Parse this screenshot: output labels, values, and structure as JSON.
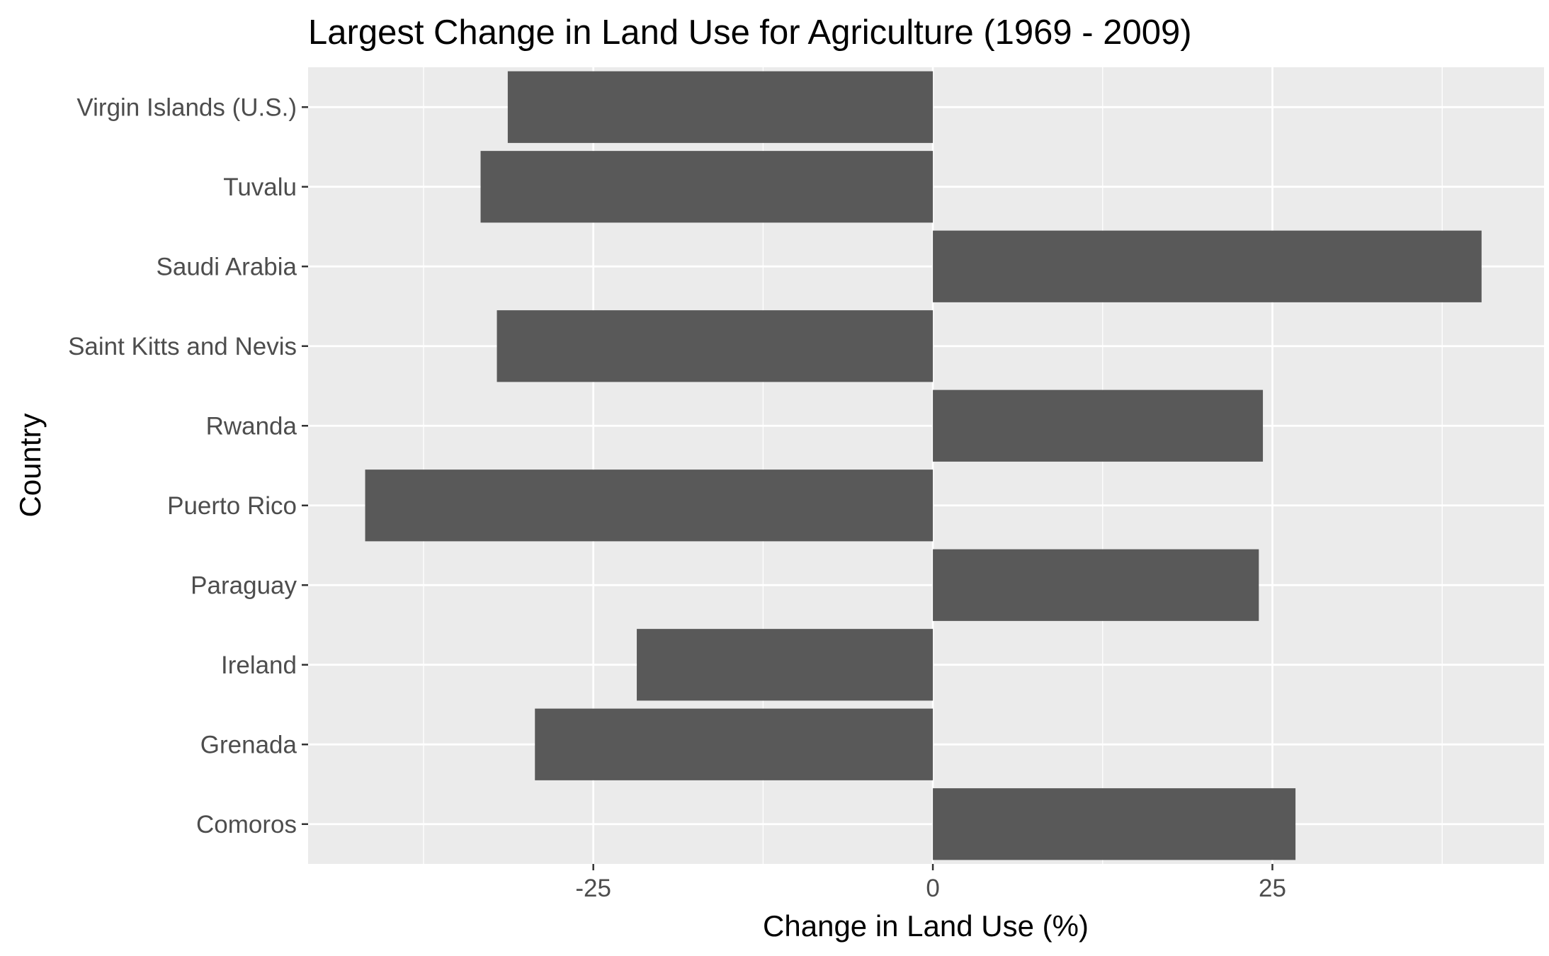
{
  "chart_data": {
    "type": "bar",
    "orientation": "horizontal",
    "title": "Largest Change in Land Use for Agriculture (1969 - 2009)",
    "xlabel": "Change in Land Use (%)",
    "ylabel": "Country",
    "categories": [
      "Comoros",
      "Grenada",
      "Ireland",
      "Paraguay",
      "Puerto Rico",
      "Rwanda",
      "Saint Kitts and Nevis",
      "Saudi Arabia",
      "Tuvalu",
      "Virgin Islands (U.S.)"
    ],
    "values": [
      26.7,
      -29.3,
      -21.8,
      24.0,
      -41.8,
      24.3,
      -32.1,
      40.4,
      -33.3,
      -31.3
    ],
    "xlim": [
      -46,
      45
    ],
    "xticks": [
      -25,
      0,
      25
    ],
    "xtick_labels": [
      "-25",
      "0",
      "25"
    ],
    "grid": true,
    "colors": {
      "bar": "#595959",
      "panel": "#ebebeb",
      "grid": "#ffffff",
      "tick_text": "#4d4d4d",
      "tick_mark": "#333333"
    }
  }
}
